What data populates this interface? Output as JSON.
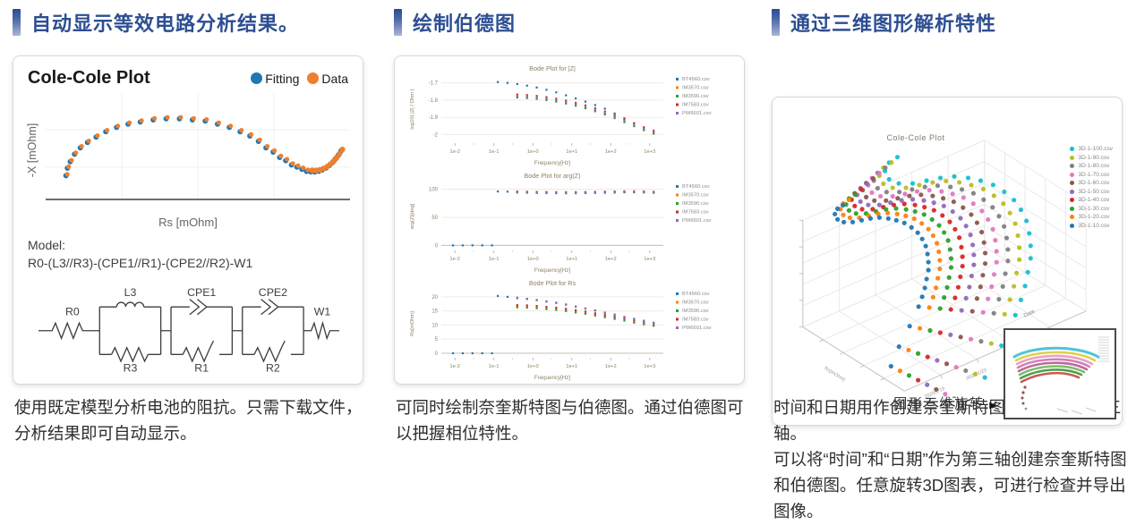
{
  "sections": [
    {
      "heading": "自动显示等效电路分析结果。",
      "description": "使用既定模型分析电池的阻抗。只需下载文件，分析结果即可自动显示。"
    },
    {
      "heading": "绘制伯德图",
      "description": "可同时绘制奈奎斯特图与伯德图。通过伯德图可以把握相位特性。"
    },
    {
      "heading": "通过三维图形解析特性",
      "description": "时间和日期用作创建奈奎斯特图和伯德图的第三轴。\n可以将“时间”和“日期”作为第三轴创建奈奎斯特图和伯德图。任意旋转3D图表，可进行检查并导出图像。"
    }
  ],
  "chart_data": [
    {
      "id": "colecole",
      "type": "scatter",
      "title": "Cole-Cole Plot",
      "legend": [
        {
          "label": "Fitting",
          "color": "#1f77b4"
        },
        {
          "label": "Data",
          "color": "#ee7f2e"
        }
      ],
      "xlabel": "Rs [mOhm]",
      "ylabel": "-X [mOhm]",
      "axes_note": "no numeric ticks visible; points normalized 0-1",
      "points_norm": [
        [
          0.06,
          0.235
        ],
        [
          0.064,
          0.305
        ],
        [
          0.072,
          0.365
        ],
        [
          0.084,
          0.435
        ],
        [
          0.1,
          0.495
        ],
        [
          0.12,
          0.545
        ],
        [
          0.144,
          0.595
        ],
        [
          0.171,
          0.645
        ],
        [
          0.201,
          0.685
        ],
        [
          0.233,
          0.715
        ],
        [
          0.267,
          0.735
        ],
        [
          0.303,
          0.755
        ],
        [
          0.339,
          0.765
        ],
        [
          0.376,
          0.765
        ],
        [
          0.412,
          0.755
        ],
        [
          0.448,
          0.745
        ],
        [
          0.482,
          0.715
        ],
        [
          0.515,
          0.685
        ],
        [
          0.545,
          0.645
        ],
        [
          0.572,
          0.605
        ],
        [
          0.596,
          0.555
        ],
        [
          0.617,
          0.495
        ],
        [
          0.637,
          0.455
        ],
        [
          0.655,
          0.405
        ],
        [
          0.672,
          0.375
        ],
        [
          0.688,
          0.335
        ],
        [
          0.703,
          0.315
        ],
        [
          0.717,
          0.295
        ],
        [
          0.73,
          0.275
        ],
        [
          0.742,
          0.271
        ],
        [
          0.753,
          0.27
        ],
        [
          0.764,
          0.276
        ],
        [
          0.774,
          0.288
        ],
        [
          0.784,
          0.306
        ],
        [
          0.793,
          0.329
        ],
        [
          0.802,
          0.357
        ],
        [
          0.81,
          0.389
        ],
        [
          0.818,
          0.425
        ],
        [
          0.826,
          0.465
        ]
      ],
      "model_label": "Model:",
      "model": "R0-(L3//R3)-(CPE1//R1)-(CPE2//R2)-W1",
      "circuit_labels": [
        "R0",
        "L3",
        "R3",
        "CPE1",
        "R1",
        "CPE2",
        "R2",
        "W1"
      ]
    },
    {
      "id": "bode",
      "type": "scatter",
      "xlabel": "Frequency[Hz]",
      "xticks": [
        "1e-2",
        "1e-1",
        "1e+0",
        "1e+1",
        "1e+2",
        "1e+3"
      ],
      "files": [
        {
          "name": "BT4560.csv",
          "color": "#1f77b4"
        },
        {
          "name": "IM3570.csv",
          "color": "#ff7f0e"
        },
        {
          "name": "IM3590.csv",
          "color": "#2ca02c"
        },
        {
          "name": "IM7583.csv",
          "color": "#d62728"
        },
        {
          "name": "PW6601.csv",
          "color": "#9467bd"
        }
      ],
      "charts": [
        {
          "title": "Bode Plot for |Z|",
          "ylabel": "log10( |Z| / Ohm )",
          "ytick_vals": [
            -1.7,
            -1.8,
            -1.9,
            -2
          ],
          "ytick_labels": [
            "-1.7",
            "-1.8",
            "-1.9",
            "-2"
          ],
          "ymin": -2.05,
          "ymax": -1.655,
          "series": [
            {
              "file": 0,
              "x0": -0.9,
              "dx": 0.25,
              "y": [
                -1.695,
                -1.7,
                -1.707,
                -1.716,
                -1.727,
                -1.74,
                -1.755,
                -1.772,
                -1.79,
                -1.809,
                -1.829,
                -1.85,
                -1.878,
                -1.906,
                -1.934,
                -1.962,
                -1.99
              ]
            },
            {
              "file": 1,
              "x0": -0.4,
              "dx": 0.25,
              "y": [
                -1.778,
                -1.781,
                -1.786,
                -1.793,
                -1.802,
                -1.813,
                -1.826,
                -1.841,
                -1.858,
                -1.877,
                -1.898,
                -1.921,
                -1.945,
                -1.968,
                -1.988
              ]
            },
            {
              "file": 2,
              "ref": 1,
              "offset": -0.007
            },
            {
              "file": 3,
              "ref": 1,
              "offset": 0.01
            },
            {
              "file": 4,
              "ref": 1,
              "offset": 0.003
            }
          ]
        },
        {
          "title": "Bode Plot for arg(Z)",
          "ylabel": "arg(Z)[deg]",
          "ytick_vals": [
            100,
            50,
            0
          ],
          "ytick_labels": [
            "100",
            "50",
            "0"
          ],
          "ymin": -9,
          "ymax": 112,
          "series": [
            {
              "file": 0,
              "x0": -2.05,
              "dx": 0.25,
              "y": [
                0,
                0,
                0,
                0,
                0
              ]
            },
            {
              "file": 0,
              "x0": -0.9,
              "dx": 0.25,
              "y": [
                96,
                95.6,
                95.2,
                94.8,
                94.4,
                94.1,
                93.8,
                93.6,
                93.5,
                93.5,
                93.7,
                94.0,
                94.4,
                94.8,
                95.1,
                95.0,
                94.3
              ]
            },
            {
              "file": 1,
              "x0": -0.4,
              "dx": 0.25,
              "y": [
                95.0,
                94.6,
                94.3,
                94.0,
                93.8,
                93.7,
                93.8,
                94.0,
                94.3,
                94.6,
                95.0,
                95.3,
                95.4,
                95.1,
                94.5
              ]
            },
            {
              "file": 2,
              "ref": 2,
              "offset": -1.0
            },
            {
              "file": 3,
              "ref": 2,
              "offset": 0.9
            },
            {
              "file": 4,
              "ref": 2,
              "offset": 0.3
            }
          ]
        },
        {
          "title": "Bode Plot for Rs",
          "ylabel": "Rs[mOhm]",
          "ytick_vals": [
            20,
            15,
            10,
            5,
            0
          ],
          "ytick_labels": [
            "20",
            "15",
            "10",
            "5",
            "0"
          ],
          "ymin": -1.6,
          "ymax": 22.5,
          "series": [
            {
              "file": 0,
              "x0": -2.05,
              "dx": 0.25,
              "y": [
                0,
                0,
                0,
                0,
                0
              ]
            },
            {
              "file": 0,
              "x0": -0.9,
              "dx": 0.25,
              "y": [
                20.3,
                20.0,
                19.7,
                19.3,
                18.9,
                18.4,
                17.9,
                17.3,
                16.6,
                15.9,
                15.2,
                14.4,
                13.7,
                12.9,
                12.2,
                11.5,
                10.8
              ]
            },
            {
              "file": 1,
              "x0": -0.4,
              "dx": 0.25,
              "y": [
                16.6,
                16.5,
                16.3,
                16.0,
                15.7,
                15.3,
                14.8,
                14.3,
                13.7,
                13.1,
                12.5,
                11.9,
                11.2,
                10.6,
                10.1
              ]
            },
            {
              "file": 2,
              "ref": 2,
              "offset": -0.35
            },
            {
              "file": 3,
              "ref": 2,
              "offset": 0.45
            },
            {
              "file": 4,
              "x0": -0.4,
              "dx": 0.25,
              "y": [
                19.5,
                19.2,
                18.8,
                18.3,
                17.8,
                17.2,
                16.5,
                15.8,
                15.1,
                14.3,
                13.5,
                12.7,
                12.0,
                11.2,
                10.5
              ]
            }
          ]
        }
      ]
    },
    {
      "id": "threed",
      "type": "scatter3d",
      "title": "Cole-Cole Plot",
      "series": [
        {
          "name": "3D-1-10.csv",
          "color": "#1f77b4"
        },
        {
          "name": "3D-1-20.csv",
          "color": "#ff7f0e"
        },
        {
          "name": "3D-1-30.csv",
          "color": "#2ca02c"
        },
        {
          "name": "3D-1-40.csv",
          "color": "#d62728"
        },
        {
          "name": "3D-1-50.csv",
          "color": "#9467bd"
        },
        {
          "name": "3D-1-60.csv",
          "color": "#8c564b"
        },
        {
          "name": "3D-1-70.csv",
          "color": "#e377c2"
        },
        {
          "name": "3D-1-80.csv",
          "color": "#7f7f7f"
        },
        {
          "name": "3D-1-90.csv",
          "color": "#bcbd22"
        },
        {
          "name": "3D-1-100.csv",
          "color": "#17becf"
        }
      ],
      "rs_axis_label": "Rs[mOhm]",
      "date_axis_title": "Date",
      "date_ticks": [
        "2020/1/19",
        "2020/1/23",
        "2020/1/27",
        "2020/1/31"
      ],
      "base_curve": [
        [
          79,
          121
        ],
        [
          73,
          125
        ],
        [
          70,
          131
        ],
        [
          73,
          137
        ],
        [
          80,
          140
        ],
        [
          90,
          140
        ],
        [
          100,
          138
        ],
        [
          110,
          136
        ],
        [
          120,
          135
        ],
        [
          130,
          136
        ],
        [
          139,
          138
        ],
        [
          148,
          141
        ],
        [
          156,
          146
        ],
        [
          163,
          152
        ],
        [
          168,
          159
        ],
        [
          172,
          167
        ],
        [
          174,
          176
        ],
        [
          175,
          185
        ],
        [
          175,
          194
        ],
        [
          173,
          204
        ],
        [
          171,
          214
        ],
        [
          168,
          224
        ],
        [
          164,
          235
        ],
        [
          159,
          246
        ],
        [
          154,
          257
        ],
        [
          148,
          268
        ],
        [
          142,
          280
        ],
        [
          137,
          291
        ],
        [
          133,
          302
        ]
      ],
      "rotate_caption": "图形三维旋转",
      "play_icon": "▶"
    }
  ]
}
